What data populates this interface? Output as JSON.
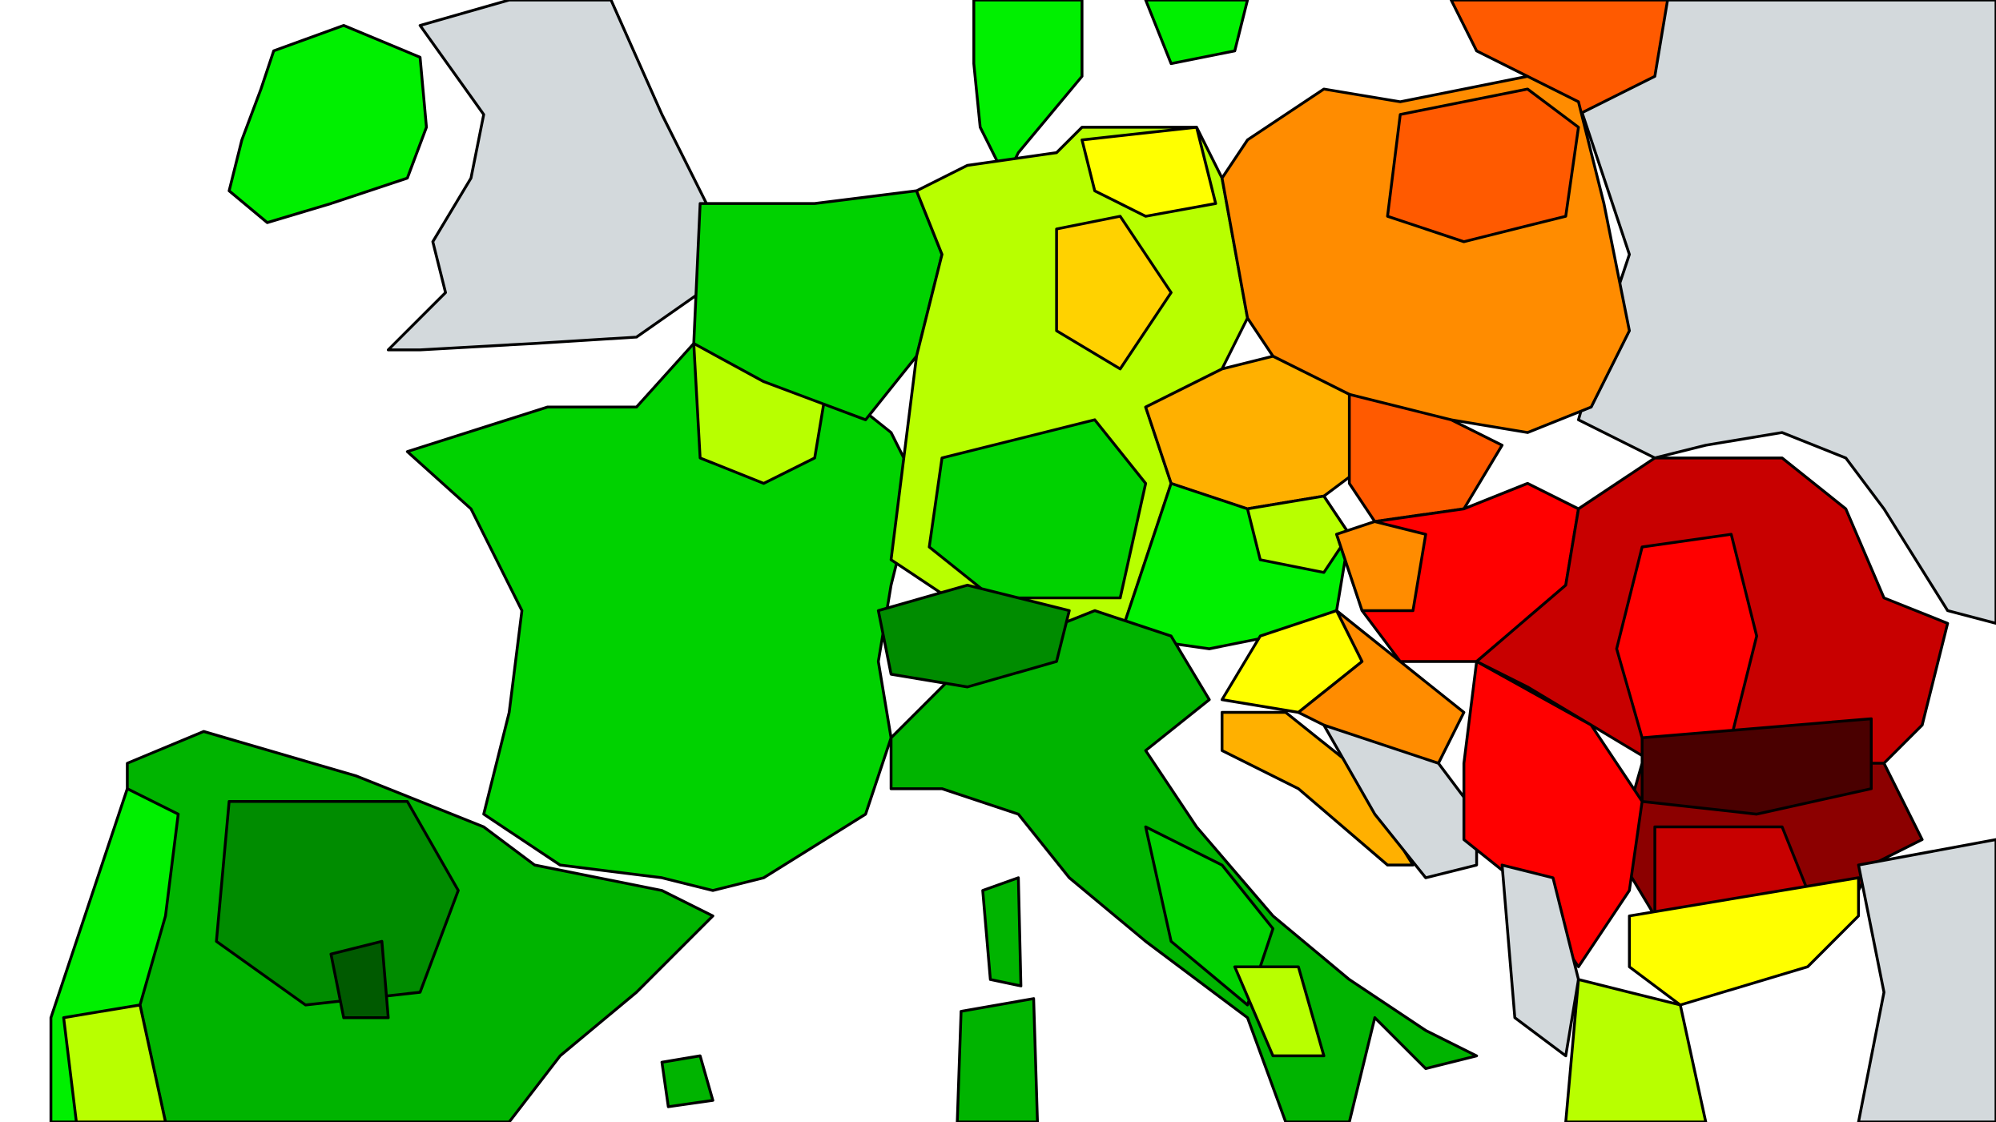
{
  "map": {
    "type": "choropleth",
    "legend": null,
    "background_sea": "#ffffff",
    "border_color": "#000000",
    "palette": {
      "no_data": "#d3d9dc",
      "darkest_green": "#005a00",
      "dark_green": "#008c00",
      "green": "#00b400",
      "mid_green": "#00d200",
      "bright_green": "#00f000",
      "lime": "#b8ff00",
      "yellow": "#ffff00",
      "gold": "#ffd200",
      "light_orange": "#ffb000",
      "orange": "#ff8c00",
      "dark_orange": "#ff5a00",
      "red": "#ff0000",
      "dark_red": "#c80000",
      "maroon": "#8c0000",
      "darkest_red": "#4a0000"
    }
  }
}
